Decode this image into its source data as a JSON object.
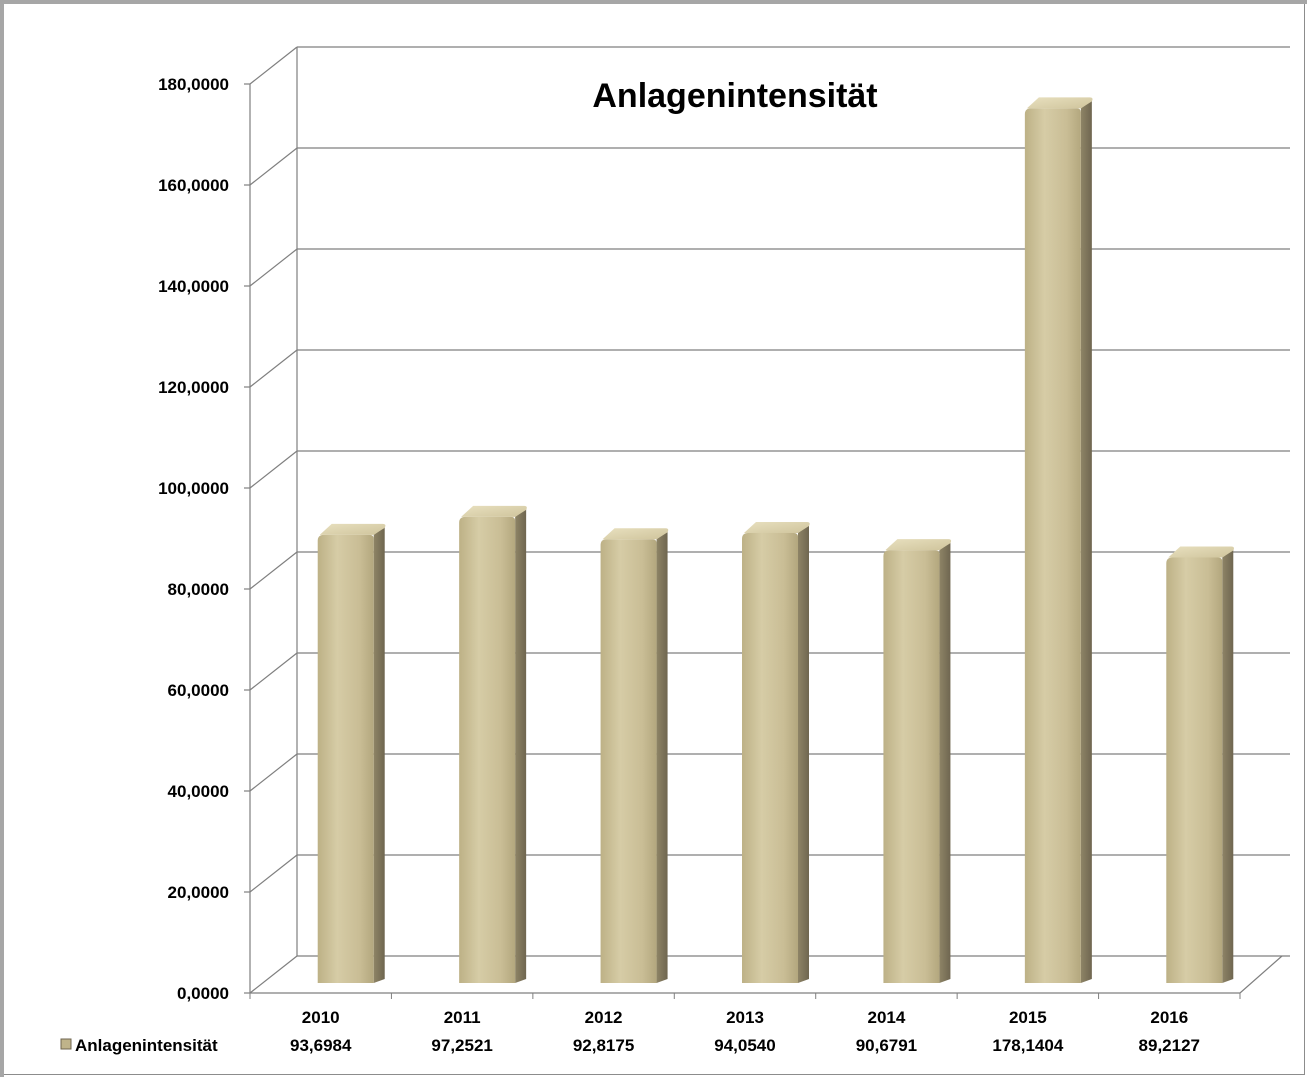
{
  "chart_data": {
    "type": "bar",
    "title": "Anlagenintensität",
    "categories": [
      "2010",
      "2011",
      "2012",
      "2013",
      "2014",
      "2015",
      "2016"
    ],
    "series": [
      {
        "name": "Anlagenintensität",
        "values": [
          93.6984,
          97.2521,
          92.8175,
          94.054,
          90.6791,
          178.1404,
          89.2127
        ],
        "labels": [
          "93,6984",
          "97,2521",
          "92,8175",
          "94,0540",
          "90,6791",
          "178,1404",
          "89,2127"
        ]
      }
    ],
    "y_ticks": [
      "0,0000",
      "20,0000",
      "40,0000",
      "60,0000",
      "80,0000",
      "100,0000",
      "120,0000",
      "140,0000",
      "160,0000",
      "180,0000"
    ],
    "ylim": [
      0,
      180
    ],
    "grid": true,
    "data_table": true,
    "colors": {
      "bar_front": "#c8bc96",
      "bar_side": "#8a8063",
      "bar_top": "#ddd4b0",
      "grid": "#7f7f7f"
    }
  }
}
